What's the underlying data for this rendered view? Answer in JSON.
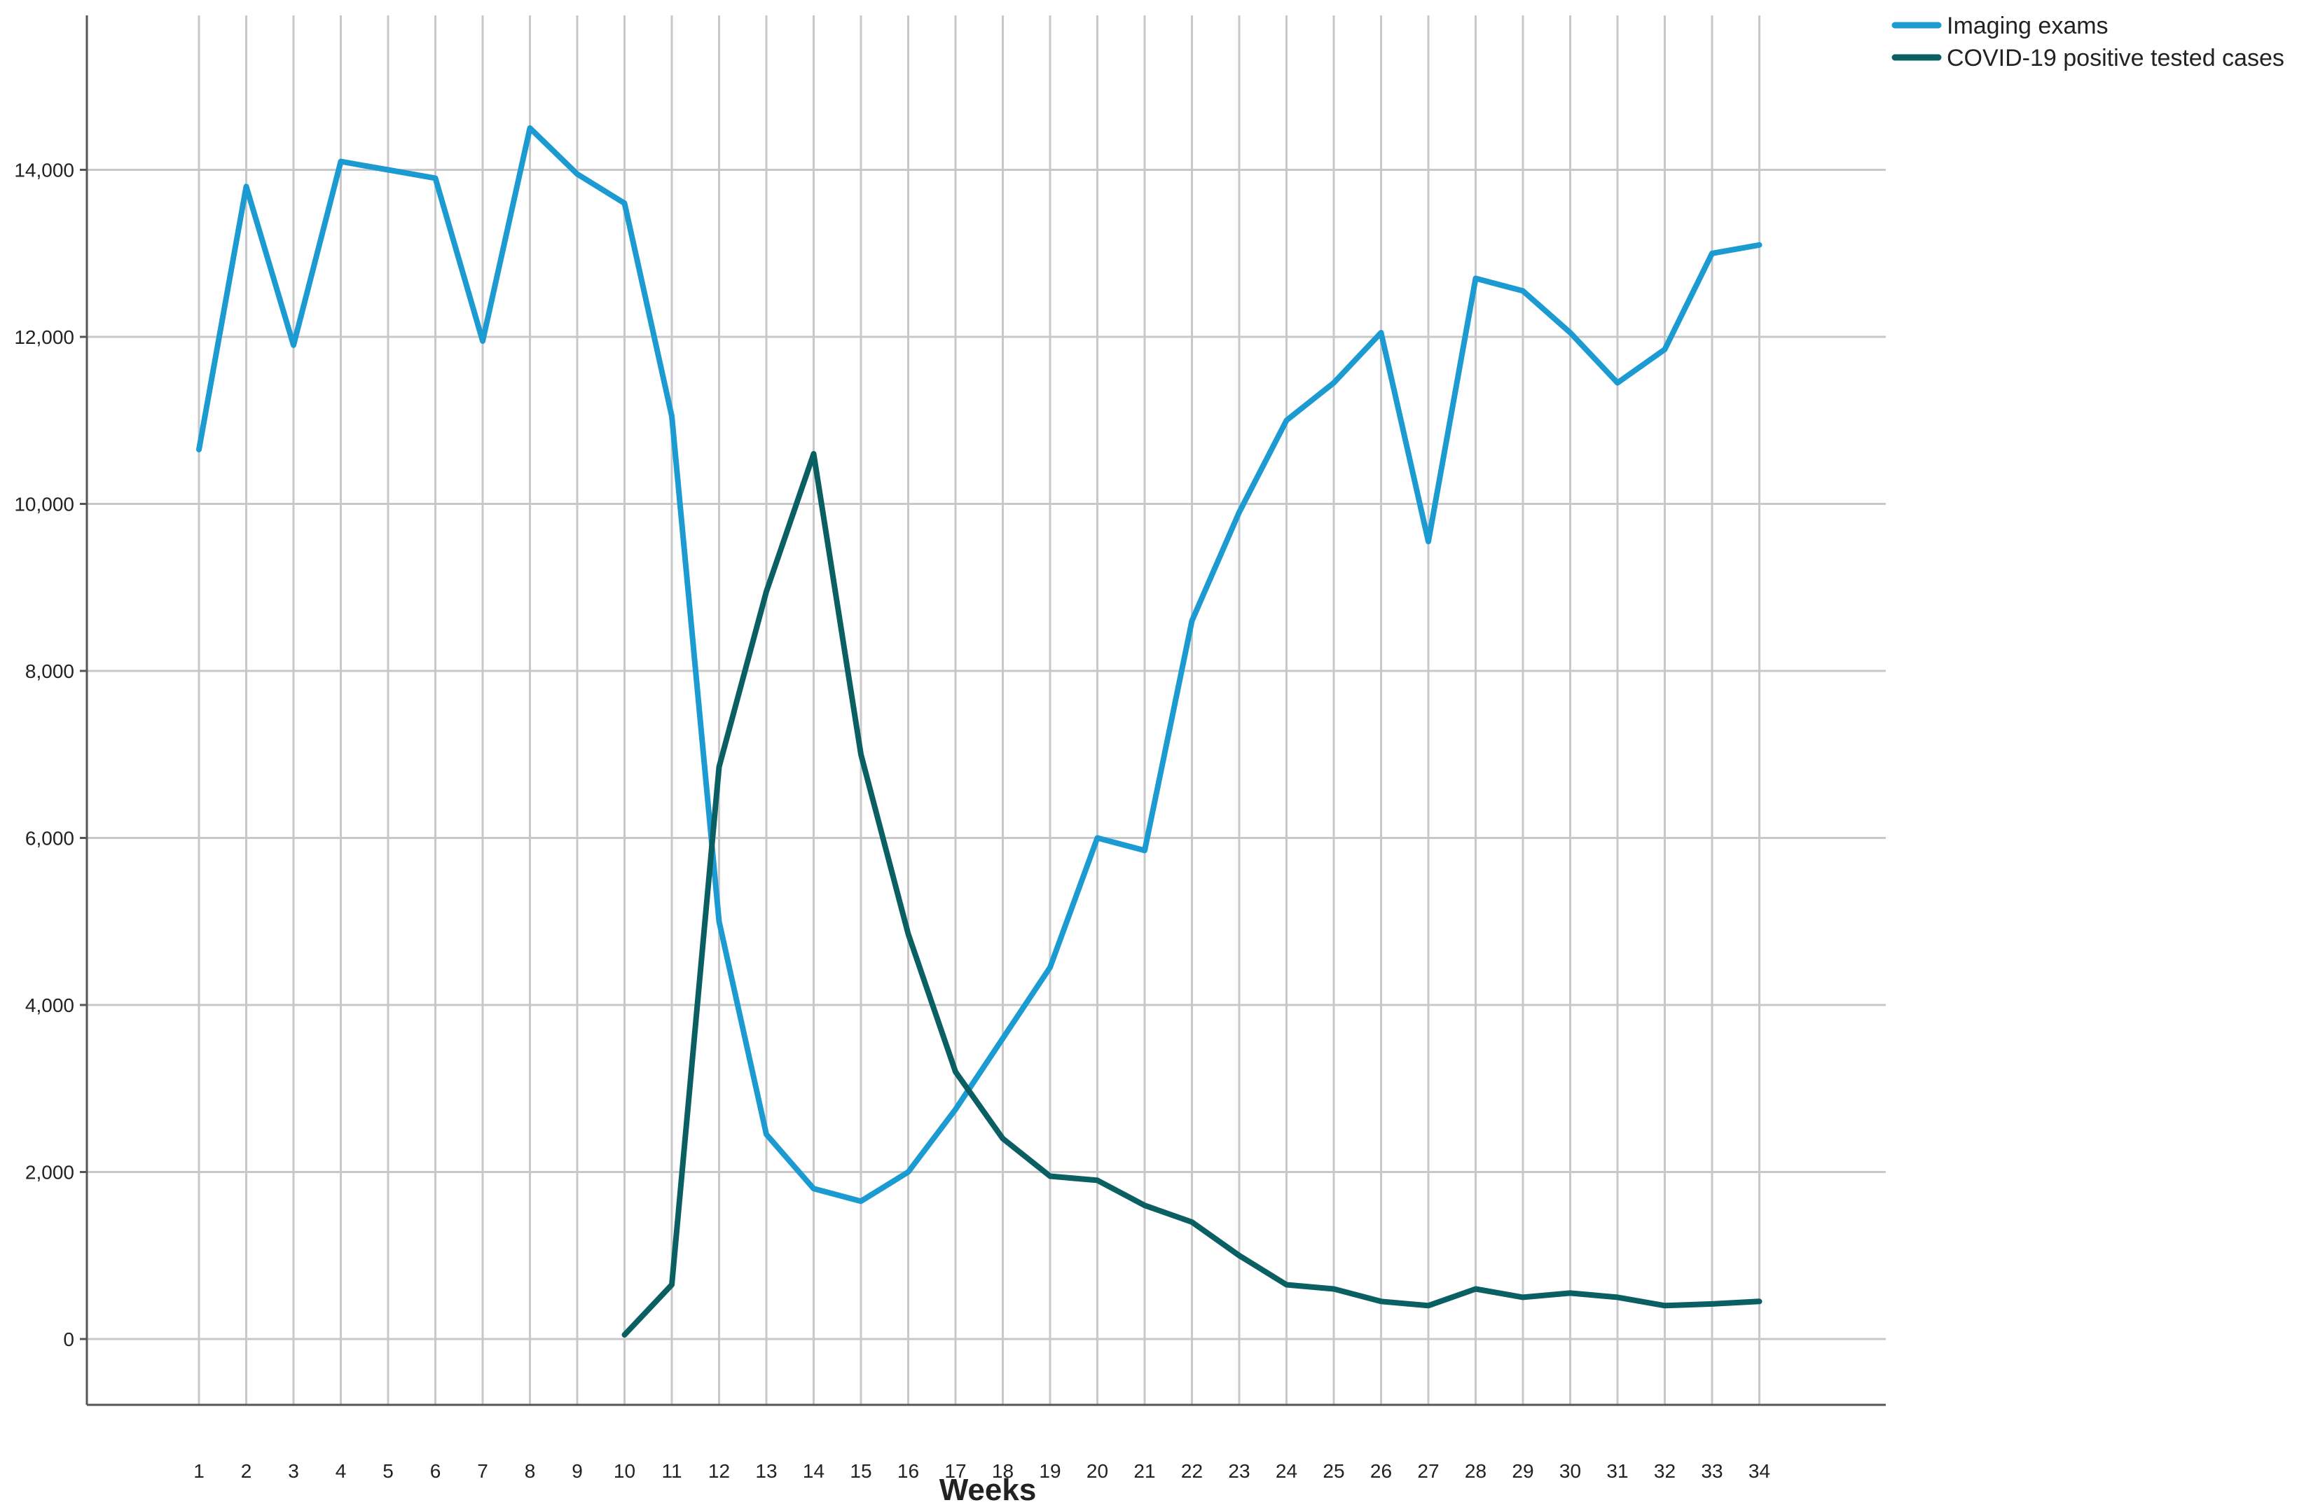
{
  "chart_data": {
    "type": "line",
    "title": "",
    "xlabel": "Weeks",
    "ylabel": "",
    "ylim": [
      -800,
      15800
    ],
    "yticks": [
      0,
      2000,
      4000,
      6000,
      8000,
      10000,
      12000,
      14000
    ],
    "ytick_labels": [
      "0",
      "2,000",
      "4,000",
      "6,000",
      "8,000",
      "10,000",
      "12,000",
      "14,000"
    ],
    "x": [
      1,
      2,
      3,
      4,
      5,
      6,
      7,
      8,
      9,
      10,
      11,
      12,
      13,
      14,
      15,
      16,
      17,
      18,
      19,
      20,
      21,
      22,
      23,
      24,
      25,
      26,
      27,
      28,
      29,
      30,
      31,
      32,
      33,
      34
    ],
    "xtick_labels": [
      "1",
      "2",
      "3",
      "4",
      "5",
      "6",
      "7",
      "8",
      "9",
      "10",
      "11",
      "12",
      "13",
      "14",
      "15",
      "16",
      "17",
      "18",
      "19",
      "20",
      "21",
      "22",
      "23",
      "24",
      "25",
      "26",
      "27",
      "28",
      "29",
      "30",
      "31",
      "32",
      "33",
      "34"
    ],
    "grid": true,
    "legend_position": "top-right",
    "series": [
      {
        "name": "Imaging exams",
        "color": "#1b9bd1",
        "x": [
          1,
          2,
          3,
          4,
          5,
          6,
          7,
          8,
          9,
          10,
          11,
          12,
          13,
          14,
          15,
          16,
          17,
          18,
          19,
          20,
          21,
          22,
          23,
          24,
          25,
          26,
          27,
          28,
          29,
          30,
          31,
          32,
          33,
          34
        ],
        "values": [
          10650,
          13800,
          11900,
          14100,
          14000,
          13900,
          11950,
          14500,
          13950,
          13600,
          11050,
          5000,
          2450,
          1800,
          1650,
          2000,
          2750,
          3600,
          4450,
          6000,
          5850,
          8600,
          9900,
          11000,
          11450,
          12050,
          9550,
          12700,
          12550,
          12050,
          11450,
          11850,
          13000,
          13100
        ]
      },
      {
        "name": "COVID-19 positive tested cases",
        "color": "#0a5f62",
        "x": [
          10,
          11,
          12,
          13,
          14,
          15,
          16,
          17,
          18,
          19,
          20,
          21,
          22,
          23,
          24,
          25,
          26,
          27,
          28,
          29,
          30,
          31,
          32,
          33,
          34
        ],
        "values": [
          50,
          650,
          6850,
          8950,
          10600,
          7000,
          4850,
          3200,
          2400,
          1950,
          1900,
          1600,
          1400,
          1000,
          650,
          600,
          450,
          400,
          600,
          500,
          550,
          500,
          400,
          420,
          450
        ]
      }
    ]
  }
}
